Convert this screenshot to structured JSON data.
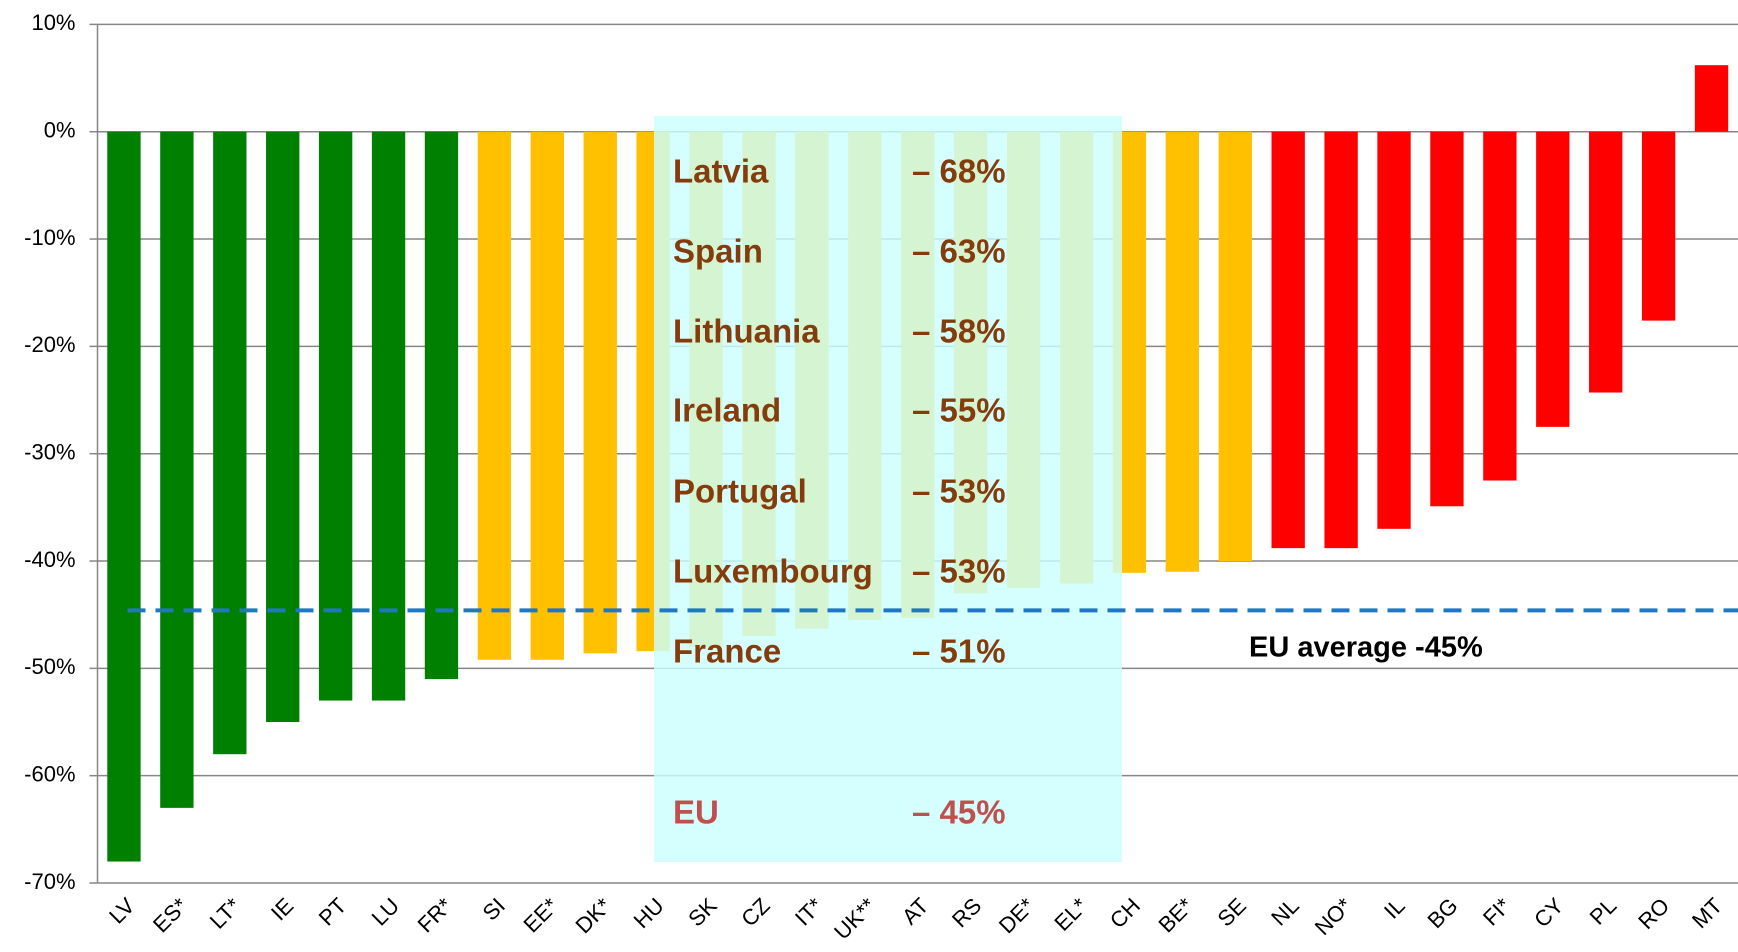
{
  "chart_data": {
    "type": "bar",
    "categories": [
      "LV",
      "ES*",
      "LT*",
      "IE",
      "PT",
      "LU",
      "FR*",
      "SI",
      "EE*",
      "DK*",
      "HU",
      "SK",
      "CZ",
      "IT*",
      "UK**",
      "AT",
      "RS",
      "DE*",
      "EL*",
      "CH",
      "BE*",
      "SE",
      "NL",
      "NO*",
      "IL",
      "BG",
      "FI*",
      "CY",
      "PL",
      "RO",
      "MT"
    ],
    "values": [
      -68,
      -63,
      -58,
      -55,
      -53,
      -53,
      -51,
      -49.2,
      -49.2,
      -48.6,
      -48.4,
      -48,
      -47,
      -46.3,
      -45.5,
      -45.3,
      -43,
      -42.5,
      -42.1,
      -41.1,
      -41,
      -40,
      -38.8,
      -38.8,
      -37,
      -34.9,
      -32.5,
      -27.5,
      -24.3,
      -17.6,
      6.2
    ],
    "colors": [
      "#008000",
      "#008000",
      "#008000",
      "#008000",
      "#008000",
      "#008000",
      "#008000",
      "#ffc000",
      "#ffc000",
      "#ffc000",
      "#ffc000",
      "#ffc000",
      "#ffc000",
      "#ffc000",
      "#ffc000",
      "#ffc000",
      "#ffc000",
      "#ffc000",
      "#ffc000",
      "#ffc000",
      "#ffc000",
      "#ffc000",
      "#ff0000",
      "#ff0000",
      "#ff0000",
      "#ff0000",
      "#ff0000",
      "#ff0000",
      "#ff0000",
      "#ff0000",
      "#ff0000"
    ],
    "ylim": [
      -70,
      10
    ],
    "yticks": [
      {
        "value": 10,
        "label": "10%"
      },
      {
        "value": 0,
        "label": "0%"
      },
      {
        "value": -10,
        "label": "-10%"
      },
      {
        "value": -20,
        "label": "-20%"
      },
      {
        "value": -30,
        "label": "-30%"
      },
      {
        "value": -40,
        "label": "-40%"
      },
      {
        "value": -50,
        "label": "-50%"
      },
      {
        "value": -60,
        "label": "-60%"
      },
      {
        "value": -70,
        "label": "-70%"
      }
    ],
    "grid": true,
    "reference_line": {
      "value": -44.6,
      "label": "EU average -45%",
      "color": "#1f77c4"
    },
    "annotation_table": [
      [
        "Latvia",
        "– 68%"
      ],
      [
        "Spain",
        "– 63%"
      ],
      [
        "Lithuania",
        "– 58%"
      ],
      [
        "Ireland",
        "– 55%"
      ],
      [
        "Portugal",
        "– 53%"
      ],
      [
        "Luxembourg",
        "– 53%"
      ],
      [
        "France",
        "– 51%"
      ],
      [
        "EU",
        "– 45%"
      ]
    ]
  }
}
